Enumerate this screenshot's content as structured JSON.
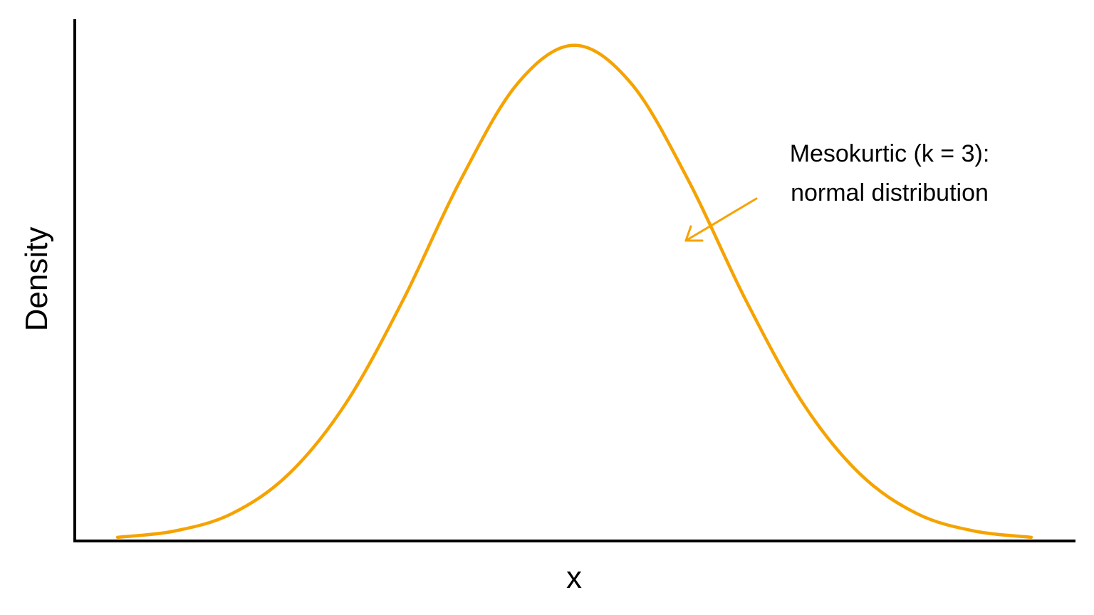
{
  "chart_data": {
    "type": "line",
    "title": "",
    "xlabel": "x",
    "ylabel": "Density",
    "xlim": [
      -3.5,
      3.5
    ],
    "ylim": [
      0,
      0.42
    ],
    "grid": false,
    "x_ticks_shown": false,
    "y_ticks_shown": false,
    "series": [
      {
        "color": "#F5A300",
        "x": [
          -3.2,
          -2.8,
          -2.4,
          -2.0,
          -1.6,
          -1.2,
          -0.8,
          -0.4,
          0.0,
          0.4,
          0.8,
          1.2,
          1.6,
          2.0,
          2.4,
          2.8,
          3.2
        ],
        "y": [
          0.003,
          0.008,
          0.022,
          0.054,
          0.111,
          0.194,
          0.29,
          0.368,
          0.399,
          0.368,
          0.29,
          0.194,
          0.111,
          0.054,
          0.022,
          0.008,
          0.003
        ]
      }
    ],
    "annotation": {
      "lines": [
        "Mesokurtic (k = 3):",
        "normal distribution"
      ],
      "arrow_color": "#F5A300"
    }
  }
}
